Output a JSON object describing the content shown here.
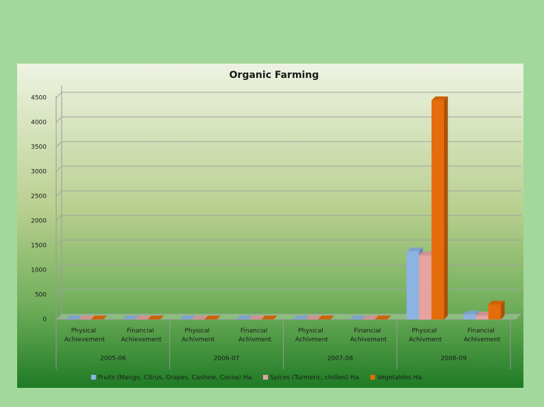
{
  "chart_data": {
    "type": "bar3d",
    "title": "Organic Farming",
    "categories": [
      "Physical Achievement",
      "Financial Achievement",
      "Physical Achivment",
      "Financial Achivment",
      "Physical Achivment",
      "Financial Achivement",
      "Physical Achivment",
      "Financial Achivement"
    ],
    "category_groups": [
      "2005-06",
      "2006-07",
      "2007-08",
      "2008-09"
    ],
    "series": [
      {
        "name": "Fruits (Mango, Citrus, Grapes, Cashew, Cocoa) Ha.",
        "color": "#8db3e2",
        "values": [
          0,
          0,
          0,
          0,
          0,
          0,
          1380,
          100
        ]
      },
      {
        "name": "Spices (Turmeric, chillies) Ha.",
        "color": "#e6a3a0",
        "values": [
          0,
          0,
          0,
          0,
          0,
          0,
          1300,
          80
        ]
      },
      {
        "name": "Vegetables Ha.",
        "color": "#e46c0a",
        "values": [
          0,
          0,
          0,
          0,
          0,
          0,
          4450,
          300
        ]
      }
    ],
    "ylim": [
      0,
      4500
    ],
    "yticks": [
      0,
      500,
      1000,
      1500,
      2000,
      2500,
      3000,
      3500,
      4000,
      4500
    ],
    "grid": true
  }
}
